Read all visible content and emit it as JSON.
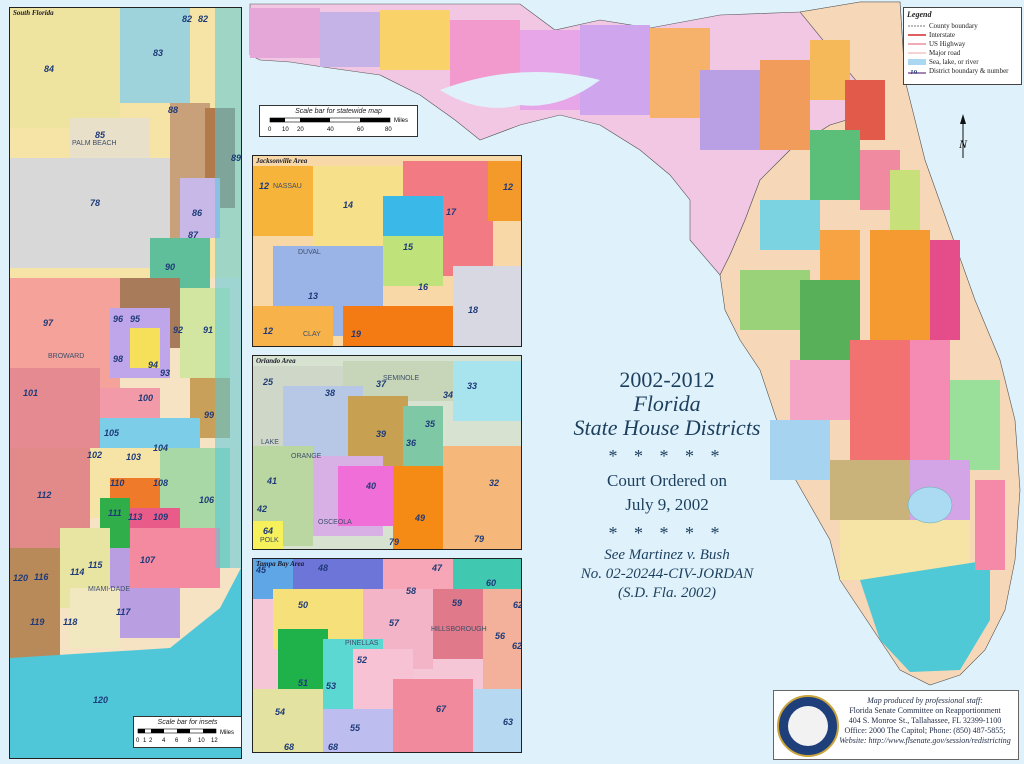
{
  "title": {
    "line1": "2002-2012",
    "line2": "Florida",
    "line3": "State House Districts",
    "stars": "* * * * *",
    "court1": "Court Ordered on",
    "court2": "July 9, 2002",
    "case1": "See Martinez v. Bush",
    "case2": "No. 02-20244-CIV-JORDAN",
    "case3": "(S.D. Fla. 2002)"
  },
  "legend": {
    "title": "Legend",
    "items": [
      {
        "label": "County boundary",
        "color": "#777777"
      },
      {
        "label": "Interstate",
        "color": "#d22a2a"
      },
      {
        "label": "US Highway",
        "color": "#e05a6a"
      },
      {
        "label": "Major road",
        "color": "#e68a8a"
      },
      {
        "label": "Sea, lake, or river",
        "color": "#aad8f0"
      },
      {
        "label": "District boundary & number",
        "color": "#6a3a8a",
        "number": "19"
      }
    ]
  },
  "north": "N",
  "insets": {
    "south": {
      "title": "South Florida",
      "places": [
        "PALM BEACH",
        "BROWARD",
        "MIAMI-DADE"
      ],
      "districts": [
        "82",
        "82",
        "83",
        "84",
        "85",
        "86",
        "87",
        "88",
        "89",
        "90",
        "91",
        "92",
        "93",
        "94",
        "95",
        "96",
        "97",
        "98",
        "99",
        "100",
        "101",
        "102",
        "103",
        "104",
        "105",
        "106",
        "107",
        "108",
        "109",
        "110",
        "111",
        "112",
        "113",
        "114",
        "115",
        "116",
        "117",
        "118",
        "119",
        "120",
        "120",
        "78"
      ]
    },
    "jacksonville": {
      "title": "Jacksonville Area",
      "places": [
        "NASSAU",
        "DUVAL",
        "CLAY"
      ],
      "districts": [
        "12",
        "14",
        "17",
        "12",
        "15",
        "13",
        "16",
        "18",
        "12",
        "19"
      ]
    },
    "orlando": {
      "title": "Orlando Area",
      "places": [
        "SEMINOLE",
        "LAKE",
        "ORANGE",
        "OSCEOLA",
        "POLK"
      ],
      "districts": [
        "25",
        "38",
        "37",
        "34",
        "33",
        "35",
        "39",
        "36",
        "41",
        "40",
        "32",
        "42",
        "49",
        "64",
        "79",
        "79"
      ]
    },
    "tampa": {
      "title": "Tampa Bay Area",
      "places": [
        "PINELLAS",
        "HILLSBOROUGH"
      ],
      "districts": [
        "45",
        "48",
        "47",
        "60",
        "58",
        "50",
        "59",
        "57",
        "56",
        "62",
        "52",
        "51",
        "53",
        "54",
        "55",
        "67",
        "63",
        "68",
        "68",
        "62"
      ]
    }
  },
  "scalebars": {
    "statewide": {
      "title": "Scale bar for statewide map",
      "ticks": [
        "0",
        "10",
        "20",
        "40",
        "60",
        "80"
      ],
      "unit": "Miles"
    },
    "insets": {
      "title": "Scale bar for insets",
      "ticks": [
        "0",
        "1",
        "2",
        "4",
        "6",
        "8",
        "10",
        "12"
      ],
      "unit": "Miles"
    }
  },
  "credit": {
    "line1": "Map produced by professional staff:",
    "line2": "Florida Senate Committee on Reapportionment",
    "line3": "404 S. Monroe St., Tallahassee, FL 32399-1100",
    "line4": "Office: 2000 The Capitol; Phone: (850) 487-5855;",
    "line5": "Website: http://www.flsenate.gov/session/redistricting"
  },
  "colors": {
    "sea": "#dff2fb",
    "land": "#f6d8b8",
    "border": "#222222",
    "title": "#1d3f5e",
    "number": "#1e3a78"
  }
}
